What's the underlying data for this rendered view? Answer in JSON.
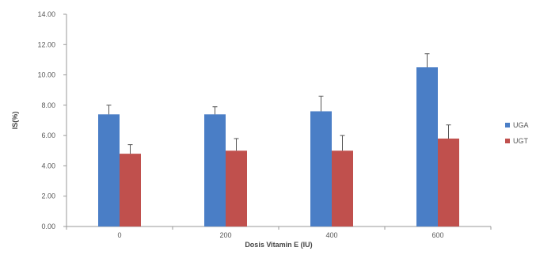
{
  "chart_data": {
    "type": "bar",
    "categories": [
      "0",
      "200",
      "400",
      "600"
    ],
    "series": [
      {
        "name": "UGA",
        "color": "#4a7ec6",
        "values": [
          7.4,
          7.4,
          7.6,
          10.5
        ],
        "errors": [
          0.6,
          0.5,
          1.0,
          0.9
        ]
      },
      {
        "name": "UGT",
        "color": "#c0504d",
        "values": [
          4.8,
          5.0,
          5.0,
          5.8
        ],
        "errors": [
          0.6,
          0.8,
          1.0,
          0.9
        ]
      }
    ],
    "xlabel": "Dosis Vitamin E (IU)",
    "ylabel": "IS(%)",
    "ylim": [
      0,
      14
    ],
    "yticks": [
      "0.00",
      "2.00",
      "4.00",
      "6.00",
      "8.00",
      "10.00",
      "12.00",
      "14.00"
    ],
    "grid": false,
    "legend": "right"
  }
}
